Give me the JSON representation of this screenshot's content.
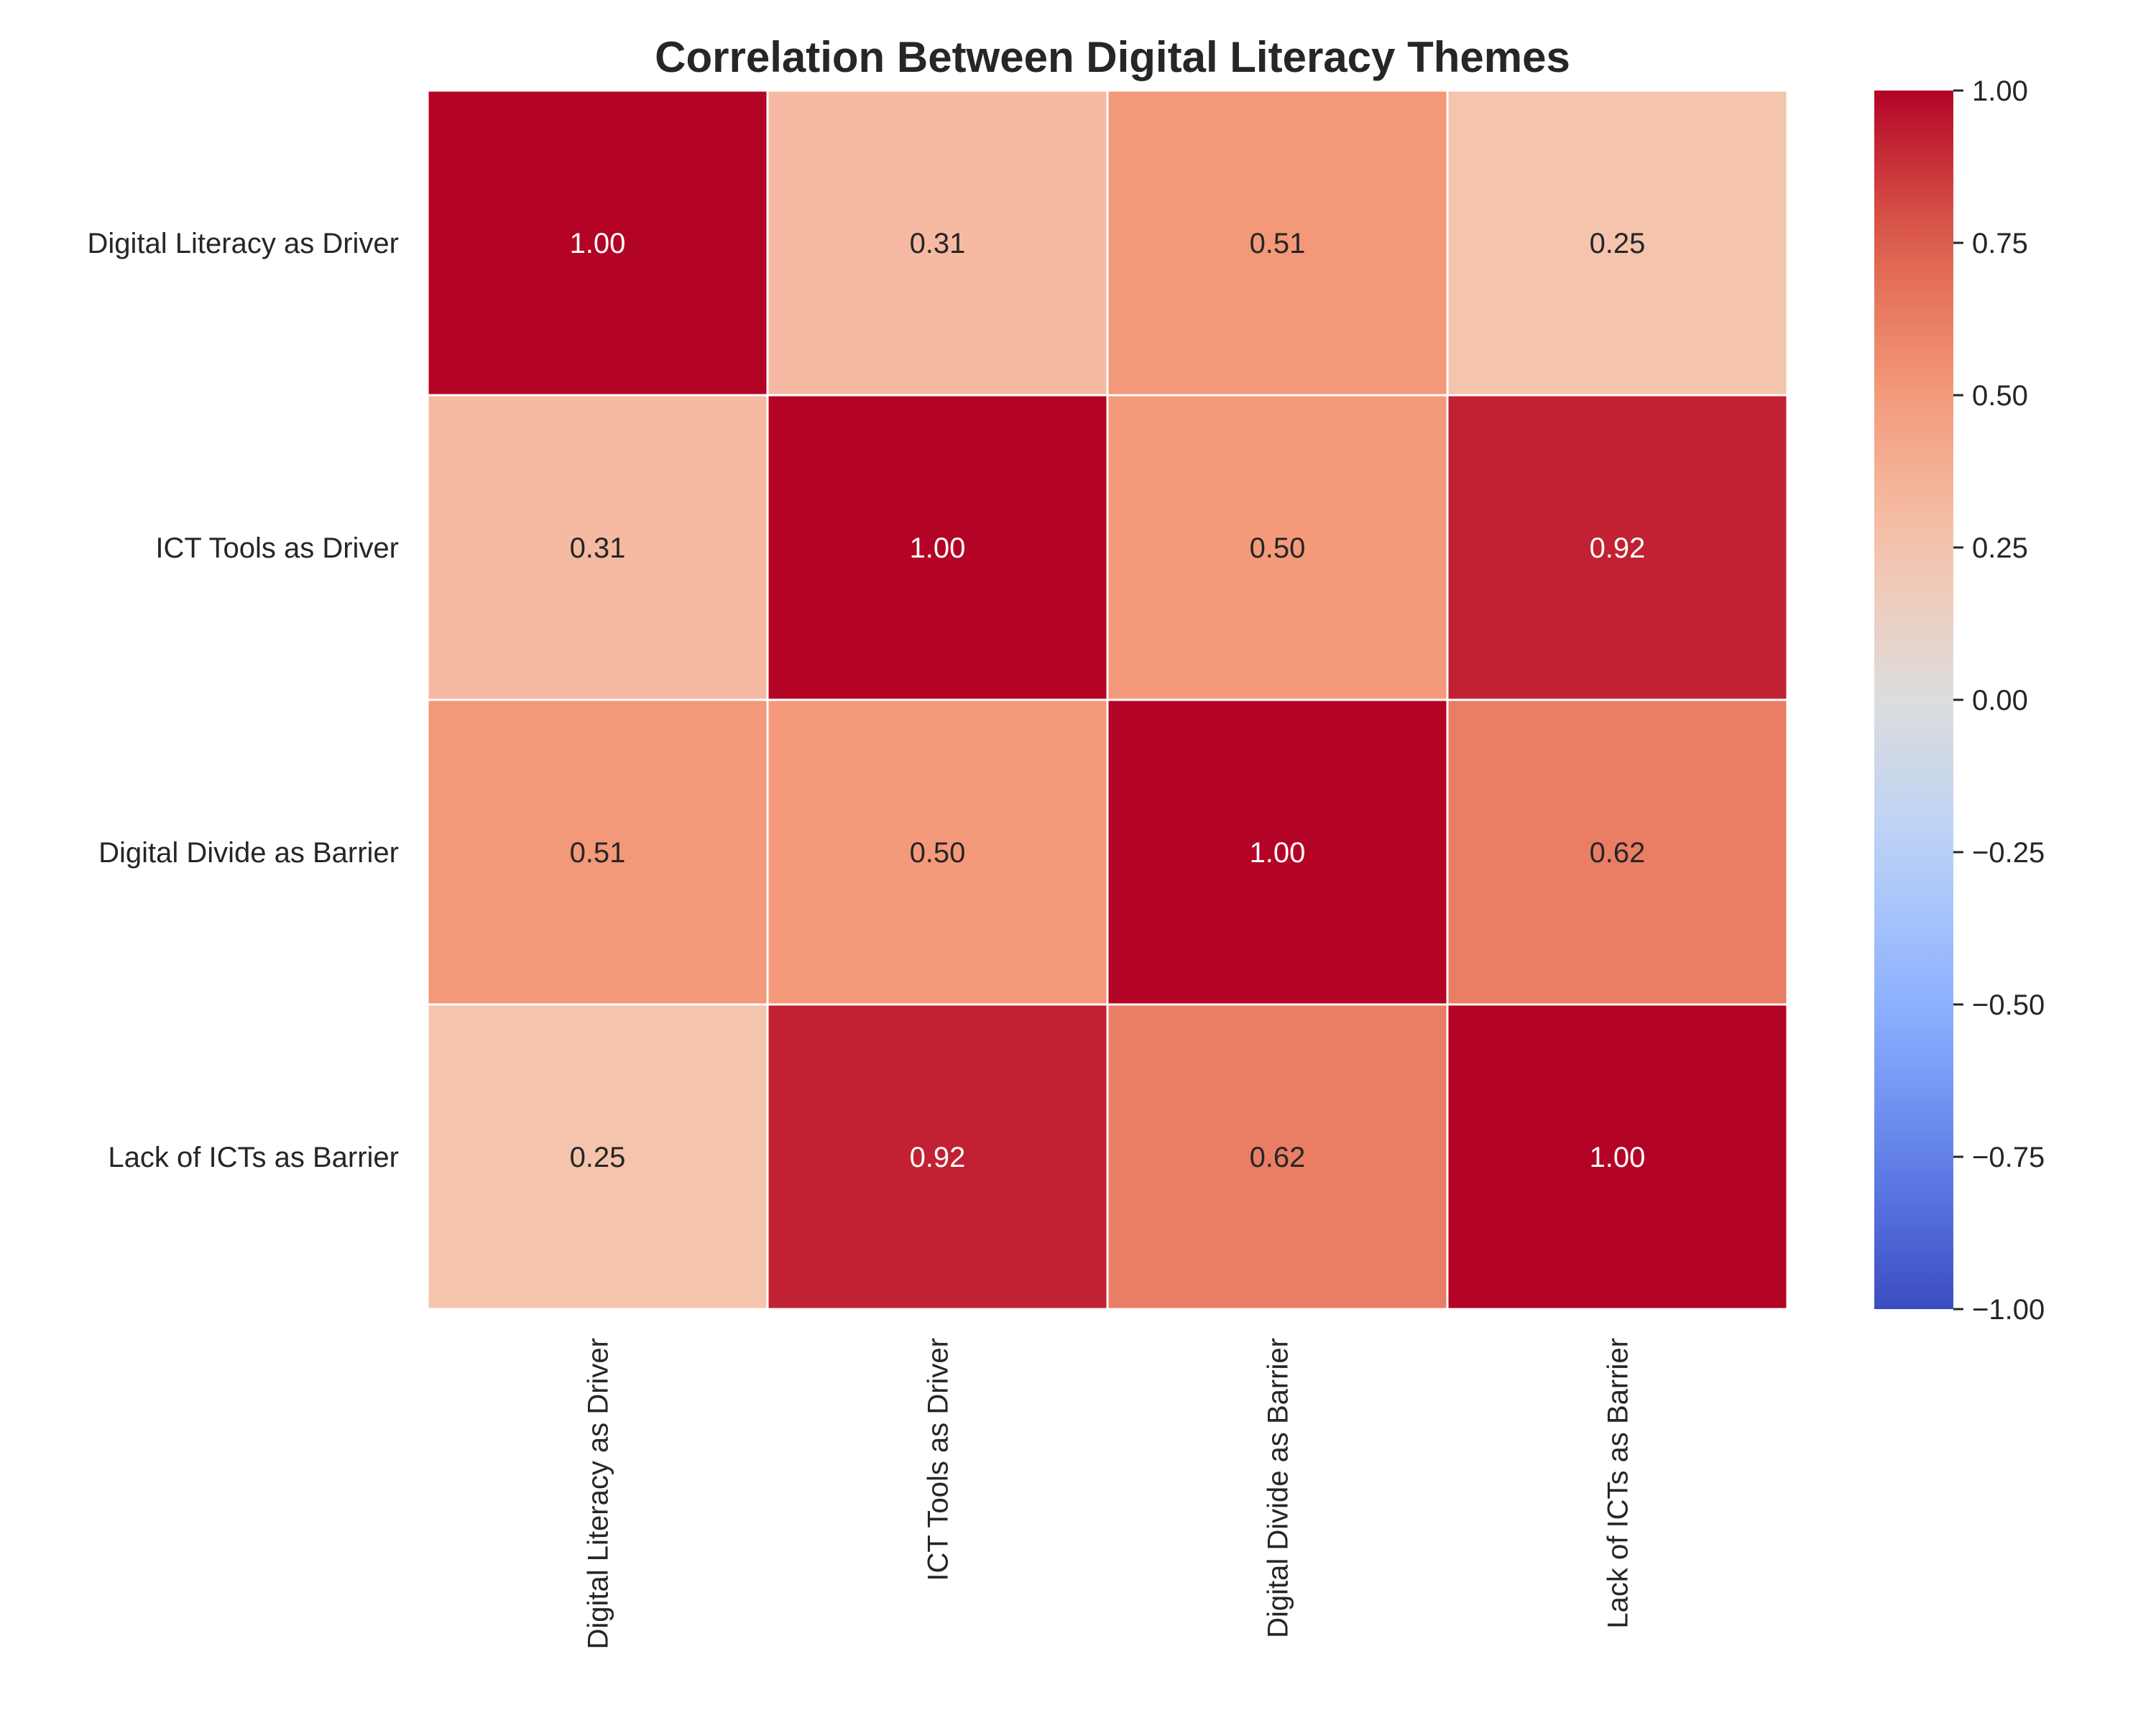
{
  "chart_data": {
    "type": "heatmap",
    "title": "Correlation Between Digital Literacy Themes",
    "xlabel": "",
    "ylabel": "",
    "row_labels": [
      "Digital Literacy as Driver",
      "ICT Tools as Driver",
      "Digital Divide as Barrier",
      "Lack of ICTs as Barrier"
    ],
    "col_labels": [
      "Digital Literacy as Driver",
      "ICT Tools as Driver",
      "Digital Divide as Barrier",
      "Lack of ICTs as Barrier"
    ],
    "values": [
      [
        1.0,
        0.31,
        0.51,
        0.25
      ],
      [
        0.31,
        1.0,
        0.5,
        0.92
      ],
      [
        0.51,
        0.5,
        1.0,
        0.62
      ],
      [
        0.25,
        0.92,
        0.62,
        1.0
      ]
    ],
    "value_format": "2 decimals",
    "colormap": "coolwarm",
    "vmin": -1.0,
    "vmax": 1.0,
    "colorbar_ticks": [
      "1.00",
      "0.75",
      "0.50",
      "0.25",
      "0.00",
      "−0.25",
      "−0.50",
      "−0.75",
      "−1.00"
    ],
    "colorbar_tick_values": [
      1.0,
      0.75,
      0.5,
      0.25,
      0.0,
      -0.25,
      -0.5,
      -0.75,
      -1.0
    ],
    "grid_line_color": "#ffffff",
    "colorbar_position": "right"
  }
}
